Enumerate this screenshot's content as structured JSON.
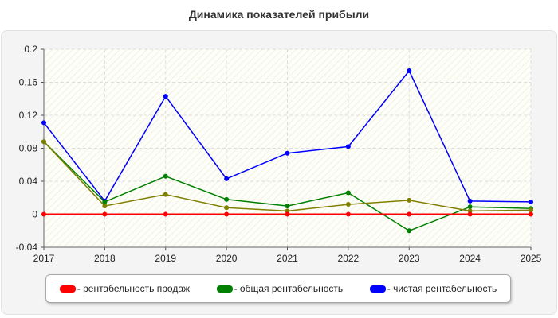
{
  "chart_data": {
    "type": "line",
    "title": "Динамика показателей прибыли",
    "x": [
      "2017",
      "2018",
      "2019",
      "2020",
      "2021",
      "2022",
      "2023",
      "2024",
      "2025"
    ],
    "yticks": [
      "0.2",
      "0.16",
      "0.12",
      "0.08",
      "0.04",
      "0",
      "-0.04"
    ],
    "ylim": [
      -0.04,
      0.2
    ],
    "grid": true,
    "legend_position": "bottom",
    "series": [
      {
        "name": "- рентабельность продаж",
        "color": "#ff0000",
        "values": [
          0,
          0,
          0,
          0,
          0,
          0,
          0,
          0,
          0
        ]
      },
      {
        "name": "- общая рентабельность",
        "color": "#008000",
        "values": [
          0.088,
          0.015,
          0.046,
          0.018,
          0.01,
          0.026,
          -0.02,
          0.009,
          0.007
        ]
      },
      {
        "name": "",
        "color": "#808000",
        "values": [
          0.088,
          0.01,
          0.024,
          0.008,
          0.004,
          0.012,
          0.017,
          0.004,
          0.005
        ]
      },
      {
        "name": "- чистая рентабельность",
        "color": "#0000ff",
        "values": [
          0.111,
          0.016,
          0.143,
          0.043,
          0.074,
          0.082,
          0.174,
          0.016,
          0.015
        ]
      }
    ]
  }
}
